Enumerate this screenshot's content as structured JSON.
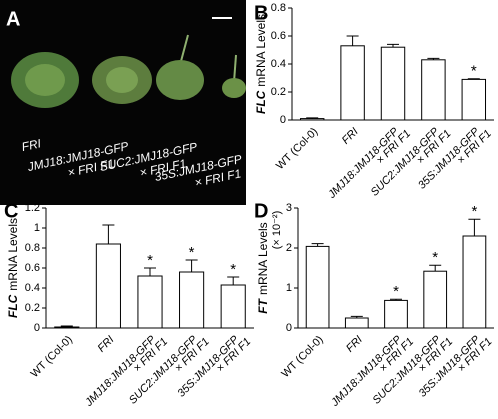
{
  "photo_panel": {
    "label": "A",
    "captions": [
      [
        "FRI"
      ],
      [
        "JMJ18:JMJ18-GFP",
        "× FRI F1"
      ],
      [
        "SUC2:JMJ18-GFP",
        "× FRI F1"
      ],
      [
        "35S:JMJ18-GFP",
        "× FRI F1"
      ]
    ]
  },
  "chart_data": [
    {
      "type": "bar",
      "panel": "B",
      "ylabel_gene": "FLC",
      "ylabel": "mRNA Levels",
      "categories": [
        [
          "WT (Col-0)"
        ],
        [
          "FRI"
        ],
        [
          "JMJ18:JMJ18-GFP",
          "× FRI F1"
        ],
        [
          "SUC2:JMJ18-GFP",
          "× FRI F1"
        ],
        [
          "35S:JMJ18-GFP",
          "× FRI F1"
        ]
      ],
      "values": [
        0.01,
        0.53,
        0.52,
        0.43,
        0.29
      ],
      "errors": [
        0.005,
        0.07,
        0.02,
        0.01,
        0.005
      ],
      "markers": [
        null,
        null,
        null,
        null,
        "*"
      ],
      "ylim": [
        0,
        0.8
      ],
      "yticks": [
        0,
        0.2,
        0.4,
        0.6,
        0.8
      ],
      "color": "#ffffff"
    },
    {
      "type": "bar",
      "panel": "C",
      "ylabel_gene": "FLC",
      "ylabel": "mRNA Levels",
      "categories": [
        [
          "WT (Col-0)"
        ],
        [
          "FRI"
        ],
        [
          "JMJ18:JMJ18-GFP",
          "× FRI F1"
        ],
        [
          "SUC2:JMJ18-GFP",
          "× FRI F1"
        ],
        [
          "35S:JMJ18-GFP",
          "× FRI F1"
        ]
      ],
      "values": [
        0.01,
        0.84,
        0.52,
        0.56,
        0.43
      ],
      "errors": [
        0.01,
        0.19,
        0.08,
        0.12,
        0.08
      ],
      "markers": [
        null,
        null,
        "*",
        "*",
        "*"
      ],
      "ylim": [
        0,
        1.2
      ],
      "yticks": [
        0,
        0.2,
        0.4,
        0.6,
        0.8,
        1,
        1.2
      ],
      "color": "#ffffff"
    },
    {
      "type": "bar",
      "panel": "D",
      "ylabel_gene": "FT",
      "ylabel": "mRNA Levels",
      "ylabel_unit": "(× 10⁻²)",
      "categories": [
        [
          "WT (Col-0)"
        ],
        [
          "FRI"
        ],
        [
          "JMJ18:JMJ18-GFP",
          "× FRI F1"
        ],
        [
          "SUC2:JMJ18-GFP",
          "× FRI F1"
        ],
        [
          "35S:JMJ18-GFP",
          "× FRI F1"
        ]
      ],
      "values": [
        2.04,
        0.25,
        0.69,
        1.42,
        2.3
      ],
      "errors": [
        0.07,
        0.04,
        0.03,
        0.15,
        0.42
      ],
      "markers": [
        null,
        null,
        "*",
        "*",
        "*"
      ],
      "ylim": [
        0,
        3
      ],
      "yticks": [
        0,
        1,
        2,
        3
      ],
      "color": "#ffffff"
    }
  ]
}
